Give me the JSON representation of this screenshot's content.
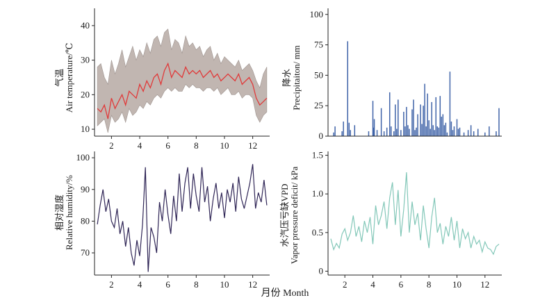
{
  "figure": {
    "xlabel": "月份 Month"
  },
  "chart_data": [
    {
      "type": "area",
      "ylabel_cn": "气温",
      "ylabel_en": "Air temperature/℃",
      "xlim": [
        0.8,
        13.2
      ],
      "ylim": [
        8,
        45
      ],
      "xticks": [
        2,
        4,
        6,
        8,
        10,
        12
      ],
      "yticks": [
        10,
        20,
        30,
        40
      ],
      "series": [
        {
          "role": "mean",
          "color": "#e03a3a",
          "x": [
            1.0,
            1.25,
            1.5,
            1.75,
            2.0,
            2.25,
            2.5,
            2.75,
            3.0,
            3.25,
            3.5,
            3.75,
            4.0,
            4.25,
            4.5,
            4.75,
            5.0,
            5.25,
            5.5,
            5.75,
            6.0,
            6.25,
            6.5,
            6.75,
            7.0,
            7.25,
            7.5,
            7.75,
            8.0,
            8.25,
            8.5,
            8.75,
            9.0,
            9.25,
            9.5,
            9.75,
            10.0,
            10.25,
            10.5,
            10.75,
            11.0,
            11.25,
            11.5,
            11.75,
            12.0,
            12.25,
            12.5,
            12.75,
            13.0
          ],
          "values": [
            16,
            15,
            17,
            13,
            19,
            16,
            18,
            20,
            17,
            21,
            20,
            19,
            23,
            21,
            24,
            22,
            25,
            26,
            23,
            27,
            29,
            25,
            27,
            26,
            25,
            28,
            26,
            27,
            26,
            27,
            25,
            26,
            27,
            25,
            26,
            24,
            25,
            26,
            25,
            24,
            26,
            23,
            24,
            25,
            23,
            19,
            17,
            18,
            19
          ]
        },
        {
          "role": "max",
          "color": "#c1b6b1",
          "x": [
            1.0,
            1.25,
            1.5,
            1.75,
            2.0,
            2.25,
            2.5,
            2.75,
            3.0,
            3.25,
            3.5,
            3.75,
            4.0,
            4.25,
            4.5,
            4.75,
            5.0,
            5.25,
            5.5,
            5.75,
            6.0,
            6.25,
            6.5,
            6.75,
            7.0,
            7.25,
            7.5,
            7.75,
            8.0,
            8.25,
            8.5,
            8.75,
            9.0,
            9.25,
            9.5,
            9.75,
            10.0,
            10.25,
            10.5,
            10.75,
            11.0,
            11.25,
            11.5,
            11.75,
            12.0,
            12.25,
            12.5,
            12.75,
            13.0
          ],
          "values": [
            28,
            29,
            25,
            23,
            30,
            26,
            29,
            33,
            28,
            31,
            34,
            30,
            33,
            31,
            35,
            32,
            36,
            37,
            34,
            38,
            39,
            33,
            36,
            35,
            32,
            37,
            34,
            35,
            33,
            34,
            31,
            33,
            34,
            30,
            32,
            29,
            31,
            30,
            29,
            28,
            30,
            27,
            28,
            29,
            27,
            24,
            22,
            26,
            28
          ]
        },
        {
          "role": "min",
          "color": "#c1b6b1",
          "x": [
            1.0,
            1.25,
            1.5,
            1.75,
            2.0,
            2.25,
            2.5,
            2.75,
            3.0,
            3.25,
            3.5,
            3.75,
            4.0,
            4.25,
            4.5,
            4.75,
            5.0,
            5.25,
            5.5,
            5.75,
            6.0,
            6.25,
            6.5,
            6.75,
            7.0,
            7.25,
            7.5,
            7.75,
            8.0,
            8.25,
            8.5,
            8.75,
            9.0,
            9.25,
            9.5,
            9.75,
            10.0,
            10.25,
            10.5,
            10.75,
            11.0,
            11.25,
            11.5,
            11.75,
            12.0,
            12.25,
            12.5,
            12.75,
            13.0
          ],
          "values": [
            11,
            12,
            13,
            9,
            14,
            12,
            13,
            15,
            12,
            16,
            14,
            15,
            17,
            16,
            18,
            17,
            19,
            20,
            19,
            21,
            22,
            21,
            22,
            21,
            21,
            23,
            22,
            23,
            22,
            22,
            21,
            22,
            22,
            21,
            22,
            20,
            21,
            22,
            20,
            20,
            21,
            19,
            20,
            20,
            19,
            14,
            12,
            14,
            15
          ]
        }
      ]
    },
    {
      "type": "bar",
      "ylabel_cn": "降水",
      "ylabel_en": "Precipitaiton/ mm",
      "xlim": [
        0.8,
        13.2
      ],
      "ylim": [
        0,
        105
      ],
      "yticks": [
        0,
        25,
        50,
        75,
        100
      ],
      "color": "#3f63a8",
      "x": [
        1.2,
        1.3,
        1.8,
        1.9,
        2.2,
        2.3,
        2.4,
        2.7,
        3.7,
        4.0,
        4.05,
        4.1,
        4.3,
        4.6,
        4.8,
        5.0,
        5.2,
        5.3,
        5.5,
        5.6,
        5.7,
        5.8,
        6.0,
        6.2,
        6.3,
        6.4,
        6.5,
        6.6,
        6.8,
        6.9,
        7.0,
        7.1,
        7.2,
        7.4,
        7.5,
        7.6,
        7.7,
        7.8,
        7.9,
        8.0,
        8.1,
        8.2,
        8.3,
        8.4,
        8.5,
        8.6,
        8.7,
        8.8,
        8.9,
        9.0,
        9.1,
        9.2,
        9.3,
        9.5,
        9.6,
        9.7,
        9.8,
        10.0,
        10.1,
        10.2,
        10.5,
        10.8,
        11.0,
        11.2,
        11.5,
        12.0,
        12.3,
        12.8,
        13.0
      ],
      "values": [
        3,
        8,
        4,
        12,
        78,
        11,
        5,
        9,
        4,
        29,
        7,
        14,
        5,
        23,
        4,
        7,
        36,
        8,
        4,
        26,
        6,
        30,
        5,
        20,
        8,
        24,
        9,
        6,
        22,
        30,
        5,
        7,
        18,
        26,
        10,
        25,
        43,
        8,
        35,
        13,
        6,
        28,
        9,
        5,
        32,
        8,
        7,
        33,
        16,
        18,
        9,
        11,
        3,
        53,
        12,
        5,
        8,
        14,
        6,
        7,
        3,
        5,
        9,
        4,
        6,
        3,
        8,
        4,
        23
      ]
    },
    {
      "type": "line",
      "ylabel_cn": "相对湿度",
      "ylabel_en": "Relative humidity/%",
      "xlim": [
        0.8,
        13.2
      ],
      "ylim": [
        63,
        102
      ],
      "xticks": [
        2,
        4,
        6,
        8,
        10,
        12
      ],
      "yticks": [
        70,
        80,
        90,
        100
      ],
      "color": "#2e2455",
      "x": [
        1.0,
        1.2,
        1.4,
        1.6,
        1.8,
        2.0,
        2.2,
        2.4,
        2.6,
        2.8,
        3.0,
        3.2,
        3.4,
        3.6,
        3.8,
        4.0,
        4.2,
        4.4,
        4.6,
        4.8,
        5.0,
        5.2,
        5.4,
        5.6,
        5.8,
        6.0,
        6.2,
        6.4,
        6.6,
        6.8,
        7.0,
        7.2,
        7.4,
        7.6,
        7.8,
        8.0,
        8.2,
        8.4,
        8.6,
        8.8,
        9.0,
        9.2,
        9.4,
        9.6,
        9.8,
        10.0,
        10.2,
        10.4,
        10.6,
        10.8,
        11.0,
        11.2,
        11.4,
        11.6,
        11.8,
        12.0,
        12.2,
        12.4,
        12.6,
        12.8,
        13.0
      ],
      "values": [
        79,
        85,
        90,
        83,
        87,
        80,
        78,
        84,
        76,
        80,
        72,
        78,
        70,
        66,
        74,
        69,
        79,
        97,
        64,
        78,
        75,
        70,
        86,
        80,
        90,
        82,
        76,
        88,
        80,
        95,
        83,
        92,
        97,
        84,
        95,
        88,
        83,
        97,
        86,
        91,
        80,
        87,
        92,
        84,
        89,
        81,
        90,
        86,
        92,
        83,
        94,
        87,
        84,
        88,
        92,
        98,
        84,
        89,
        86,
        93,
        85
      ]
    },
    {
      "type": "line",
      "ylabel_cn": "水汽压亏缺VPD",
      "ylabel_en": "Vapor pressure deficit/ kPa",
      "xlim": [
        0.8,
        13.2
      ],
      "ylim": [
        -0.05,
        1.55
      ],
      "xticks": [
        2,
        4,
        6,
        8,
        10,
        12
      ],
      "yticks": [
        0,
        0.5,
        1.0,
        1.5
      ],
      "ytick_labels": [
        "0",
        "0.5",
        "1.0",
        "1.5"
      ],
      "color": "#82c7b8",
      "x": [
        1.0,
        1.2,
        1.4,
        1.6,
        1.8,
        2.0,
        2.2,
        2.4,
        2.6,
        2.8,
        3.0,
        3.2,
        3.4,
        3.6,
        3.8,
        4.0,
        4.2,
        4.4,
        4.6,
        4.8,
        5.0,
        5.2,
        5.4,
        5.6,
        5.8,
        6.0,
        6.2,
        6.4,
        6.6,
        6.8,
        7.0,
        7.2,
        7.4,
        7.6,
        7.8,
        8.0,
        8.2,
        8.4,
        8.6,
        8.8,
        9.0,
        9.2,
        9.4,
        9.6,
        9.8,
        10.0,
        10.2,
        10.4,
        10.6,
        10.8,
        11.0,
        11.2,
        11.4,
        11.6,
        11.8,
        12.0,
        12.2,
        12.4,
        12.6,
        12.8,
        13.0
      ],
      "values": [
        0.42,
        0.28,
        0.36,
        0.3,
        0.48,
        0.55,
        0.4,
        0.5,
        0.72,
        0.45,
        0.58,
        0.38,
        0.65,
        0.5,
        0.7,
        0.35,
        0.85,
        0.6,
        0.72,
        0.9,
        0.55,
        0.95,
        1.15,
        0.6,
        1.05,
        0.45,
        0.8,
        1.28,
        0.5,
        0.9,
        0.6,
        0.75,
        0.4,
        0.85,
        0.55,
        0.3,
        0.7,
        0.95,
        0.5,
        0.62,
        0.35,
        0.58,
        0.45,
        0.7,
        0.4,
        0.65,
        0.3,
        0.55,
        0.42,
        0.5,
        0.3,
        0.45,
        0.35,
        0.4,
        0.25,
        0.38,
        0.3,
        0.28,
        0.22,
        0.32,
        0.35
      ]
    }
  ]
}
